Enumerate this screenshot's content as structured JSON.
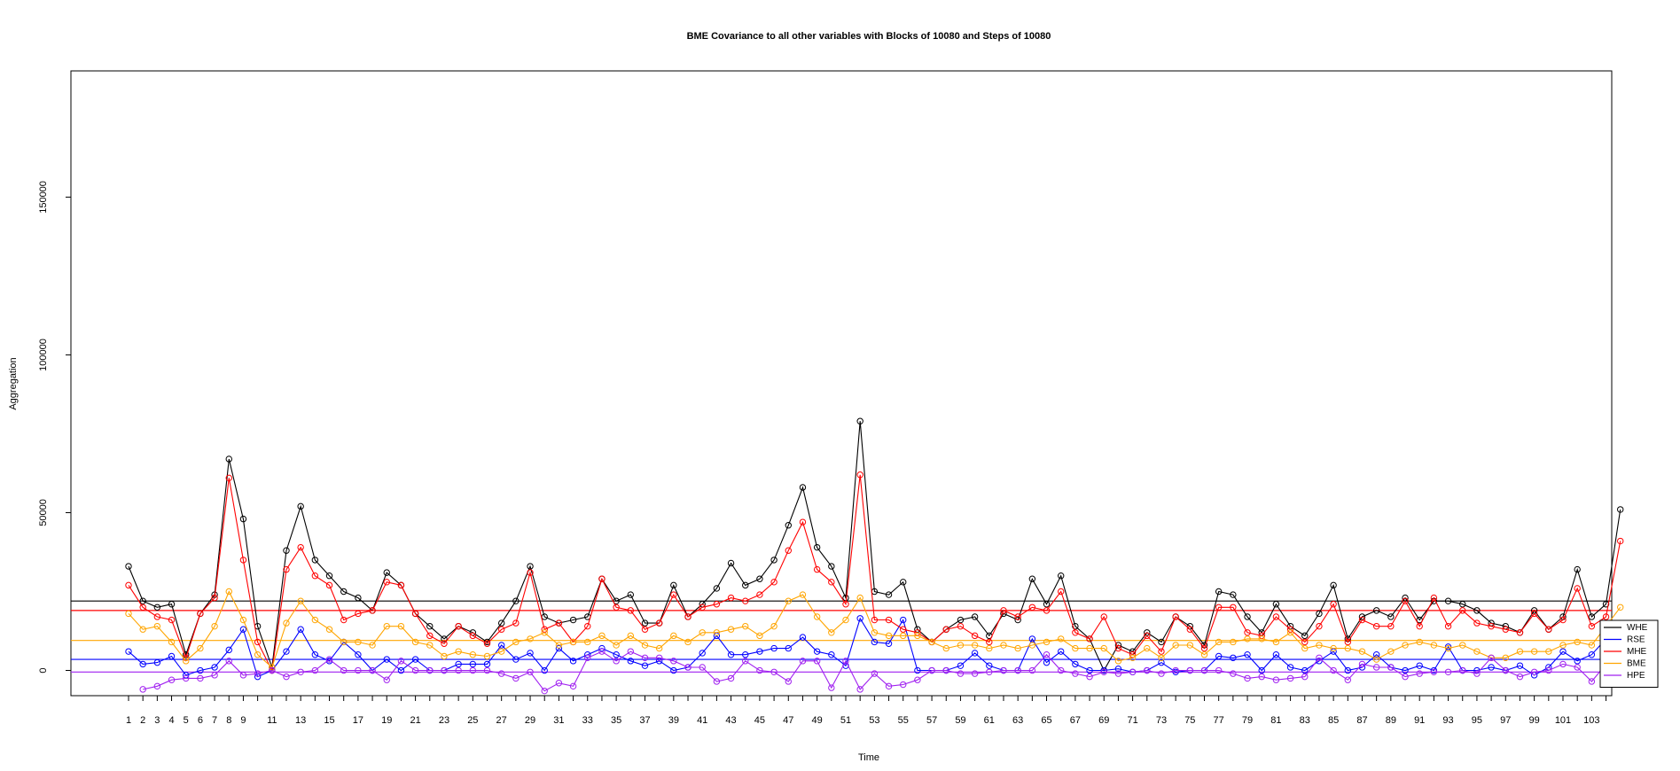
{
  "chart_data": {
    "type": "line",
    "title": "BME Covariance to all other variables with Blocks of 10080 and Steps of 10080",
    "xlabel": "Time",
    "ylabel": "Aggregation",
    "xlim": [
      1,
      104
    ],
    "ylim": [
      -8000,
      190000
    ],
    "x_tick_labels": [
      "1",
      "2",
      "3",
      "4",
      "5",
      "6",
      "7",
      "8",
      "9",
      "11",
      "13",
      "15",
      "17",
      "19",
      "21",
      "23",
      "25",
      "27",
      "29",
      "31",
      "33",
      "35",
      "37",
      "39",
      "41",
      "43",
      "45",
      "47",
      "49",
      "51",
      "53",
      "55",
      "57",
      "59",
      "61",
      "63",
      "65",
      "67",
      "69",
      "71",
      "73",
      "75",
      "77",
      "79",
      "81",
      "83",
      "85",
      "87",
      "89",
      "91",
      "93",
      "95",
      "97",
      "99",
      "101",
      "103"
    ],
    "y_ticks": [
      0,
      50000,
      100000,
      150000
    ],
    "y_tick_labels": [
      "0",
      "50000",
      "100000",
      "150000"
    ],
    "legend_position": "bottom-right",
    "series": [
      {
        "name": "WHE",
        "color": "#000000",
        "mean": 22000,
        "values": [
          33000,
          22000,
          20000,
          21000,
          5000,
          18000,
          24000,
          67000,
          48000,
          14000,
          1000,
          38000,
          52000,
          35000,
          30000,
          25000,
          23000,
          19000,
          31000,
          27000,
          18000,
          14000,
          10000,
          14000,
          12000,
          9000,
          15000,
          22000,
          33000,
          17000,
          15000,
          16000,
          17000,
          29000,
          22000,
          24000,
          15000,
          15000,
          27000,
          17000,
          21000,
          26000,
          34000,
          27000,
          29000,
          35000,
          46000,
          58000,
          39000,
          33000,
          23000,
          79000,
          25000,
          24000,
          28000,
          13000,
          9000,
          13000,
          16000,
          17000,
          11000,
          18000,
          16000,
          29000,
          21000,
          30000,
          14000,
          10000,
          0,
          8000,
          6000,
          12000,
          9000,
          17000,
          14000,
          8000,
          25000,
          24000,
          17000,
          12000,
          21000,
          14000,
          11000,
          18000,
          27000,
          10000,
          17000,
          19000,
          17000,
          23000,
          16000,
          22000,
          22000,
          21000,
          19000,
          15000,
          14000,
          12000,
          19000,
          13000,
          17000,
          32000,
          17000,
          21000,
          51000
        ]
      },
      {
        "name": "RSE",
        "color": "#0000ff",
        "mean": 3500,
        "values": [
          6000,
          2000,
          2500,
          4500,
          -1500,
          0,
          1000,
          6500,
          13000,
          -2000,
          0,
          6000,
          13000,
          5000,
          3000,
          9000,
          5000,
          0,
          3500,
          0,
          3500,
          0,
          0,
          2000,
          2000,
          2000,
          8000,
          3500,
          5500,
          0,
          7000,
          3000,
          5000,
          7000,
          5000,
          3000,
          1500,
          3000,
          0,
          1000,
          5500,
          11000,
          5000,
          5000,
          6000,
          7000,
          7000,
          10500,
          6000,
          5000,
          1500,
          16500,
          9000,
          8500,
          16000,
          0,
          0,
          0,
          1500,
          5500,
          1500,
          0,
          0,
          10000,
          2500,
          6000,
          2000,
          0,
          0,
          500,
          -500,
          0,
          2500,
          -500,
          0,
          0,
          4500,
          4000,
          5000,
          0,
          5000,
          1000,
          0,
          3000,
          6000,
          0,
          1000,
          5000,
          1000,
          0,
          1500,
          0,
          7500,
          0,
          0,
          1000,
          0,
          1500,
          -1500,
          1000,
          6000,
          3000,
          5000,
          10000
        ]
      },
      {
        "name": "MHE",
        "color": "#ff0000",
        "mean": 19000,
        "values": [
          27000,
          20000,
          17000,
          16000,
          4000,
          18000,
          23000,
          61000,
          35000,
          9000,
          0,
          32000,
          39000,
          30000,
          27000,
          16000,
          18000,
          19000,
          28000,
          27000,
          18000,
          11000,
          8500,
          14000,
          11000,
          8500,
          13000,
          15000,
          31000,
          13000,
          15000,
          9000,
          14000,
          29000,
          20000,
          19000,
          13000,
          15000,
          24000,
          17000,
          20000,
          21000,
          23000,
          22000,
          24000,
          28000,
          38000,
          47000,
          32000,
          28000,
          21000,
          62000,
          16000,
          16000,
          13000,
          12000,
          9000,
          13000,
          14000,
          11000,
          9000,
          19000,
          17000,
          20000,
          19000,
          25000,
          12000,
          10000,
          17000,
          7000,
          5000,
          11000,
          6000,
          17000,
          13000,
          7000,
          20000,
          20000,
          12000,
          11000,
          17000,
          13000,
          9000,
          14000,
          21000,
          9000,
          16000,
          14000,
          14000,
          22000,
          14000,
          23000,
          14000,
          19000,
          15000,
          14000,
          13000,
          12000,
          18000,
          13000,
          16000,
          26000,
          14000,
          17000,
          41000
        ]
      },
      {
        "name": "BME",
        "color": "#ffa500",
        "mean": 9500,
        "values": [
          18000,
          13000,
          14000,
          9000,
          3000,
          7000,
          14000,
          25000,
          16000,
          5000,
          1000,
          15000,
          22000,
          16000,
          13000,
          9000,
          9000,
          8000,
          14000,
          14000,
          9000,
          8000,
          4500,
          6000,
          5000,
          4500,
          6000,
          9000,
          10000,
          12000,
          8000,
          9000,
          9000,
          11000,
          8000,
          11000,
          8000,
          7000,
          11000,
          9000,
          12000,
          12000,
          13000,
          14000,
          11000,
          14000,
          22000,
          24000,
          17000,
          12000,
          16000,
          23000,
          12000,
          11000,
          11000,
          11000,
          9000,
          7000,
          8000,
          8000,
          7000,
          8000,
          7000,
          8000,
          9000,
          10000,
          7000,
          7000,
          7000,
          3000,
          4000,
          7000,
          4000,
          8000,
          8000,
          5000,
          9000,
          9000,
          10000,
          10000,
          9000,
          12000,
          7000,
          8000,
          7000,
          7000,
          6000,
          3500,
          6000,
          8000,
          9000,
          8000,
          7000,
          8000,
          6000,
          4000,
          4000,
          6000,
          6000,
          6000,
          8000,
          9000,
          8000,
          14000,
          20000
        ]
      },
      {
        "name": "HPE",
        "color": "#a020f0",
        "mean": -500,
        "values": [
          null,
          -6000,
          -5000,
          -3000,
          -2500,
          -2500,
          -1500,
          3000,
          -1500,
          -1000,
          0,
          -2000,
          -500,
          0,
          3500,
          0,
          0,
          0,
          -3000,
          3000,
          0,
          0,
          0,
          0,
          0,
          0,
          -1000,
          -2500,
          -500,
          -6500,
          -4000,
          -5000,
          4000,
          6000,
          3000,
          6000,
          4000,
          4000,
          3000,
          1000,
          1000,
          -3500,
          -2500,
          3000,
          0,
          -500,
          -3500,
          3000,
          3000,
          -5500,
          3000,
          -6000,
          -1000,
          -5000,
          -4500,
          -3000,
          0,
          0,
          -1000,
          -1000,
          -500,
          0,
          0,
          0,
          5000,
          0,
          -1000,
          -2000,
          -500,
          -1000,
          -500,
          0,
          -1000,
          0,
          0,
          0,
          0,
          -1000,
          -2500,
          -2000,
          -3000,
          -2500,
          -2000,
          4000,
          0,
          -3000,
          2000,
          1000,
          1000,
          -2000,
          -1000,
          -500,
          -500,
          0,
          -1000,
          4000,
          0,
          -2000,
          -500,
          0,
          2000,
          1000,
          -3500,
          2000
        ]
      }
    ]
  }
}
